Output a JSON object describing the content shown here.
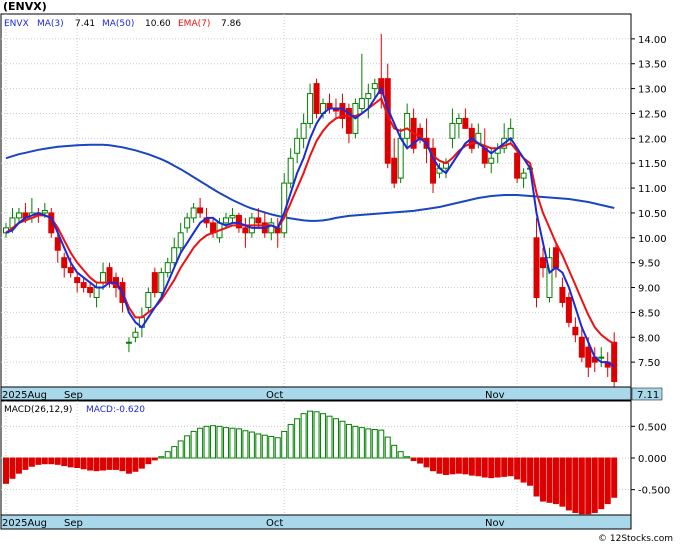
{
  "ticker": "(ENVX)",
  "legend": {
    "symbol": "ENVX",
    "ma3": "MA(3)",
    "ma3_value": "7.41",
    "ma50": "MA(50)",
    "ma50_value": "10.60",
    "ema7": "EMA(7)",
    "ema7_value": "7.86"
  },
  "last_price_label": "7.11",
  "macd_legend": {
    "params": "MACD(26,12,9)",
    "value": "MACD:-0.620"
  },
  "month_labels": [
    "2025Aug",
    "Sep",
    "Oct",
    "Nov"
  ],
  "watermark": "© 12Stocks.com",
  "colors": {
    "up": "#008000",
    "down": "#dd0000",
    "ma3": "#1c2ad6",
    "ema7": "#ee1111",
    "ma50": "#1a47c0",
    "axis_band": "#a8d8ea"
  },
  "chart_data": [
    {
      "type": "candlestick",
      "title": "(ENVX)",
      "ylim": [
        7.0,
        14.5
      ],
      "yticks": [
        7.5,
        8.0,
        8.5,
        9.0,
        9.5,
        10.0,
        10.5,
        11.0,
        11.5,
        12.0,
        12.5,
        13.0,
        13.5,
        14.0
      ],
      "ytick_labels": [
        "7.50",
        "8.00",
        "8.50",
        "9.00",
        "9.50",
        "10.00",
        "10.50",
        "11.00",
        "11.50",
        "12.00",
        "12.50",
        "13.00",
        "13.50",
        "14.00"
      ],
      "x_month_starts": [
        {
          "label": "2025Aug",
          "index": 0
        },
        {
          "label": "Sep",
          "index": 11
        },
        {
          "label": "Oct",
          "index": 43
        },
        {
          "label": "Nov",
          "index": 79
        }
      ],
      "candles": [
        [
          10.1,
          10.3,
          10.0,
          10.2
        ],
        [
          10.2,
          10.6,
          10.1,
          10.4
        ],
        [
          10.4,
          10.6,
          10.3,
          10.5
        ],
        [
          10.5,
          10.7,
          10.3,
          10.4
        ],
        [
          10.4,
          10.8,
          10.3,
          10.5
        ],
        [
          10.5,
          10.6,
          10.3,
          10.45
        ],
        [
          10.5,
          10.7,
          10.4,
          10.55
        ],
        [
          10.5,
          10.6,
          10.0,
          10.1
        ],
        [
          10.0,
          10.2,
          9.5,
          9.75
        ],
        [
          9.6,
          9.7,
          9.2,
          9.4
        ],
        [
          9.4,
          9.6,
          9.2,
          9.3
        ],
        [
          9.2,
          9.3,
          8.9,
          9.1
        ],
        [
          9.1,
          9.2,
          8.9,
          9.0
        ],
        [
          9.0,
          9.1,
          8.8,
          8.9
        ],
        [
          8.8,
          9.1,
          8.6,
          9.0
        ],
        [
          9.1,
          9.5,
          8.95,
          9.3
        ],
        [
          9.4,
          9.5,
          9.0,
          9.1
        ],
        [
          9.2,
          9.3,
          8.8,
          9.0
        ],
        [
          9.1,
          9.2,
          8.5,
          8.7
        ],
        [
          7.9,
          8.0,
          7.7,
          7.9
        ],
        [
          8.0,
          8.2,
          7.9,
          8.1
        ],
        [
          8.2,
          8.6,
          8.0,
          8.4
        ],
        [
          8.6,
          9.0,
          8.5,
          8.9
        ],
        [
          9.3,
          9.4,
          8.8,
          8.9
        ],
        [
          8.9,
          9.4,
          8.8,
          9.3
        ],
        [
          9.3,
          9.6,
          9.2,
          9.5
        ],
        [
          9.5,
          10.0,
          9.4,
          9.8
        ],
        [
          9.8,
          10.3,
          9.7,
          10.1
        ],
        [
          10.2,
          10.5,
          10.1,
          10.4
        ],
        [
          10.4,
          10.7,
          10.3,
          10.6
        ],
        [
          10.6,
          10.8,
          10.4,
          10.5
        ],
        [
          10.4,
          10.6,
          10.2,
          10.3
        ],
        [
          10.3,
          10.4,
          10.0,
          10.1
        ],
        [
          10.0,
          10.4,
          9.9,
          10.3
        ],
        [
          10.3,
          10.5,
          10.2,
          10.4
        ],
        [
          10.4,
          10.6,
          10.3,
          10.45
        ],
        [
          10.45,
          10.5,
          10.1,
          10.2
        ],
        [
          10.2,
          10.4,
          9.8,
          10.1
        ],
        [
          10.1,
          10.5,
          10.0,
          10.4
        ],
        [
          10.4,
          10.6,
          10.2,
          10.3
        ],
        [
          10.3,
          10.5,
          10.0,
          10.1
        ],
        [
          10.1,
          10.4,
          9.95,
          10.3
        ],
        [
          10.2,
          10.4,
          9.8,
          10.1
        ],
        [
          10.1,
          11.3,
          10.0,
          11.1
        ],
        [
          11.1,
          11.8,
          11.0,
          11.6
        ],
        [
          11.7,
          12.2,
          11.5,
          12.0
        ],
        [
          12.0,
          12.5,
          11.8,
          12.3
        ],
        [
          12.3,
          13.1,
          12.2,
          12.9
        ],
        [
          13.1,
          13.2,
          12.4,
          12.5
        ],
        [
          12.5,
          12.8,
          12.4,
          12.7
        ],
        [
          12.7,
          12.9,
          12.5,
          12.6
        ],
        [
          12.6,
          12.8,
          12.4,
          12.55
        ],
        [
          12.7,
          12.9,
          12.2,
          12.4
        ],
        [
          12.6,
          12.7,
          11.9,
          12.1
        ],
        [
          12.1,
          12.8,
          12.0,
          12.7
        ],
        [
          12.6,
          13.7,
          12.5,
          12.8
        ],
        [
          12.8,
          13.1,
          12.4,
          12.9
        ],
        [
          13.0,
          13.2,
          12.8,
          13.1
        ],
        [
          13.2,
          14.1,
          12.6,
          12.9
        ],
        [
          13.2,
          13.5,
          11.4,
          11.5
        ],
        [
          11.6,
          12.0,
          11.0,
          11.1
        ],
        [
          11.2,
          12.2,
          11.1,
          12.0
        ],
        [
          12.0,
          12.7,
          11.8,
          12.5
        ],
        [
          12.4,
          12.6,
          11.7,
          11.8
        ],
        [
          12.2,
          12.3,
          11.9,
          12.0
        ],
        [
          12.0,
          12.4,
          11.5,
          11.8
        ],
        [
          11.8,
          12.0,
          10.9,
          11.1
        ],
        [
          11.3,
          11.5,
          11.2,
          11.4
        ],
        [
          11.4,
          11.6,
          11.2,
          11.5
        ],
        [
          12.0,
          12.6,
          11.8,
          12.3
        ],
        [
          12.3,
          12.5,
          12.0,
          12.4
        ],
        [
          12.4,
          12.6,
          12.2,
          12.2
        ],
        [
          12.2,
          12.3,
          11.7,
          11.8
        ],
        [
          11.9,
          12.3,
          11.8,
          12.1
        ],
        [
          11.8,
          12.2,
          11.4,
          11.5
        ],
        [
          11.5,
          11.8,
          11.3,
          11.6
        ],
        [
          11.7,
          11.9,
          11.5,
          11.8
        ],
        [
          11.8,
          12.3,
          11.7,
          12.0
        ],
        [
          12.0,
          12.4,
          11.9,
          12.2
        ],
        [
          11.7,
          11.8,
          11.1,
          11.2
        ],
        [
          11.2,
          11.4,
          11.0,
          11.3
        ],
        [
          11.4,
          11.5,
          11.3,
          11.4
        ],
        [
          10.0,
          10.4,
          8.6,
          8.8
        ],
        [
          9.6,
          9.8,
          9.2,
          9.4
        ],
        [
          8.8,
          9.8,
          8.7,
          9.6
        ],
        [
          9.8,
          9.9,
          9.2,
          9.4
        ],
        [
          9.0,
          9.2,
          8.6,
          8.7
        ],
        [
          8.8,
          8.9,
          8.2,
          8.3
        ],
        [
          8.2,
          8.4,
          7.9,
          8.05
        ],
        [
          8.0,
          8.2,
          7.5,
          7.6
        ],
        [
          7.8,
          8.0,
          7.2,
          7.4
        ],
        [
          7.6,
          7.8,
          7.3,
          7.5
        ],
        [
          7.6,
          7.8,
          7.4,
          7.6
        ],
        [
          7.5,
          7.7,
          7.2,
          7.4
        ],
        [
          7.9,
          8.1,
          7.0,
          7.11
        ]
      ],
      "series": [
        {
          "name": "MA(3)",
          "color": "#1c2ad6",
          "values": [
            10.1,
            10.15,
            10.3,
            10.4,
            10.45,
            10.5,
            10.45,
            10.4,
            10.1,
            9.8,
            9.5,
            9.3,
            9.2,
            9.1,
            9.0,
            9.0,
            9.1,
            9.1,
            8.9,
            8.5,
            8.3,
            8.2,
            8.4,
            8.6,
            8.8,
            9.1,
            9.4,
            9.7,
            9.9,
            10.1,
            10.3,
            10.4,
            10.4,
            10.3,
            10.25,
            10.3,
            10.3,
            10.25,
            10.2,
            10.2,
            10.2,
            10.25,
            10.2,
            10.5,
            10.9,
            11.3,
            11.6,
            12.0,
            12.3,
            12.5,
            12.6,
            12.6,
            12.6,
            12.5,
            12.4,
            12.5,
            12.6,
            12.8,
            13.0,
            12.6,
            12.3,
            12.0,
            11.8,
            11.9,
            12.0,
            11.9,
            11.6,
            11.4,
            11.3,
            11.5,
            11.7,
            11.9,
            12.0,
            11.9,
            11.8,
            11.7,
            11.8,
            11.9,
            12.0,
            11.8,
            11.6,
            11.4,
            10.5,
            9.9,
            9.3,
            9.4,
            9.3,
            9.0,
            8.6,
            8.2,
            7.9,
            7.6,
            7.5,
            7.5,
            7.41
          ]
        },
        {
          "name": "EMA(7)",
          "color": "#ee1111",
          "values": [
            10.1,
            10.2,
            10.3,
            10.35,
            10.4,
            10.45,
            10.45,
            10.4,
            10.2,
            9.95,
            9.7,
            9.5,
            9.35,
            9.2,
            9.1,
            9.1,
            9.1,
            9.05,
            8.9,
            8.6,
            8.4,
            8.4,
            8.5,
            8.6,
            8.75,
            8.95,
            9.15,
            9.4,
            9.6,
            9.8,
            9.95,
            10.05,
            10.1,
            10.15,
            10.2,
            10.25,
            10.25,
            10.25,
            10.25,
            10.25,
            10.25,
            10.25,
            10.2,
            10.4,
            10.7,
            11.0,
            11.3,
            11.65,
            11.95,
            12.15,
            12.3,
            12.4,
            12.45,
            12.45,
            12.45,
            12.5,
            12.6,
            12.7,
            12.8,
            12.45,
            12.2,
            12.15,
            12.2,
            12.1,
            12.05,
            11.9,
            11.65,
            11.55,
            11.5,
            11.6,
            11.75,
            11.85,
            11.9,
            11.9,
            11.85,
            11.8,
            11.8,
            11.85,
            11.9,
            11.75,
            11.6,
            11.5,
            10.9,
            10.5,
            10.2,
            9.9,
            9.65,
            9.35,
            9.05,
            8.75,
            8.45,
            8.2,
            8.05,
            7.95,
            7.86
          ]
        },
        {
          "name": "MA(50)",
          "color": "#1a47c0",
          "values": [
            11.6,
            11.64,
            11.68,
            11.71,
            11.74,
            11.77,
            11.79,
            11.81,
            11.83,
            11.84,
            11.85,
            11.86,
            11.865,
            11.87,
            11.87,
            11.87,
            11.86,
            11.84,
            11.82,
            11.79,
            11.76,
            11.72,
            11.68,
            11.63,
            11.58,
            11.52,
            11.45,
            11.38,
            11.3,
            11.22,
            11.14,
            11.06,
            10.98,
            10.9,
            10.83,
            10.76,
            10.7,
            10.64,
            10.59,
            10.55,
            10.51,
            10.47,
            10.44,
            10.41,
            10.39,
            10.37,
            10.35,
            10.34,
            10.34,
            10.35,
            10.37,
            10.4,
            10.42,
            10.44,
            10.45,
            10.46,
            10.47,
            10.48,
            10.49,
            10.5,
            10.51,
            10.52,
            10.53,
            10.54,
            10.56,
            10.58,
            10.6,
            10.62,
            10.65,
            10.68,
            10.71,
            10.74,
            10.77,
            10.8,
            10.82,
            10.84,
            10.85,
            10.86,
            10.86,
            10.86,
            10.85,
            10.84,
            10.83,
            10.82,
            10.81,
            10.8,
            10.79,
            10.78,
            10.76,
            10.74,
            10.72,
            10.69,
            10.66,
            10.63,
            10.6
          ]
        }
      ]
    },
    {
      "type": "bar",
      "title": "MACD(26,12,9)",
      "ylim": [
        -0.9,
        0.9
      ],
      "yticks": [
        -0.5,
        0,
        0.5
      ],
      "ytick_labels": [
        "-0.500",
        "0.000",
        "0.500"
      ],
      "values": [
        -0.4,
        -0.32,
        -0.24,
        -0.18,
        -0.13,
        -0.1,
        -0.09,
        -0.09,
        -0.1,
        -0.12,
        -0.14,
        -0.15,
        -0.17,
        -0.19,
        -0.2,
        -0.19,
        -0.18,
        -0.18,
        -0.2,
        -0.24,
        -0.21,
        -0.16,
        -0.09,
        -0.03,
        0.02,
        0.1,
        0.18,
        0.27,
        0.35,
        0.42,
        0.47,
        0.5,
        0.51,
        0.5,
        0.48,
        0.47,
        0.46,
        0.43,
        0.41,
        0.38,
        0.36,
        0.34,
        0.32,
        0.42,
        0.53,
        0.62,
        0.7,
        0.74,
        0.73,
        0.7,
        0.66,
        0.62,
        0.58,
        0.53,
        0.5,
        0.48,
        0.46,
        0.45,
        0.44,
        0.33,
        0.2,
        0.1,
        0.02,
        -0.04,
        -0.08,
        -0.14,
        -0.2,
        -0.24,
        -0.26,
        -0.25,
        -0.24,
        -0.25,
        -0.27,
        -0.28,
        -0.3,
        -0.31,
        -0.3,
        -0.29,
        -0.28,
        -0.33,
        -0.38,
        -0.43,
        -0.6,
        -0.68,
        -0.7,
        -0.72,
        -0.76,
        -0.82,
        -0.86,
        -0.88,
        -0.88,
        -0.86,
        -0.8,
        -0.72,
        -0.62
      ]
    }
  ]
}
